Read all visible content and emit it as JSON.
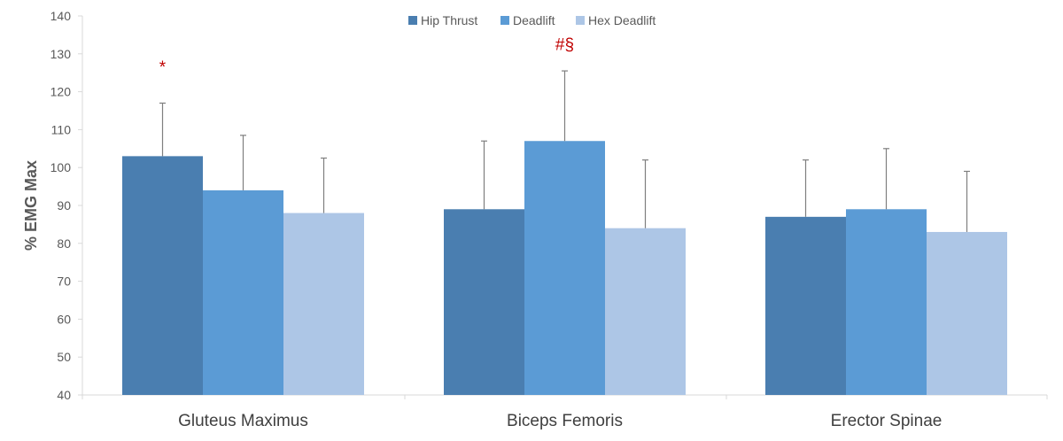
{
  "chart_data": {
    "type": "bar",
    "categories": [
      "Gluteus Maximus",
      "Biceps Femoris",
      "Erector Spinae"
    ],
    "series": [
      {
        "name": "Hip Thrust",
        "color": "#4a7eb0",
        "values": [
          103,
          89,
          87
        ],
        "errors": [
          14,
          18,
          15
        ]
      },
      {
        "name": "Deadlift",
        "color": "#5b9bd5",
        "values": [
          94,
          107,
          89
        ],
        "errors": [
          14.5,
          18.5,
          16
        ]
      },
      {
        "name": "Hex Deadlift",
        "color": "#adc6e6",
        "values": [
          88,
          84,
          83
        ],
        "errors": [
          14.5,
          18,
          16
        ]
      }
    ],
    "ylabel": "% EMG Max",
    "xlabel": "",
    "ylim": [
      40,
      140
    ],
    "yticks": [
      40,
      50,
      60,
      70,
      80,
      90,
      100,
      110,
      120,
      130,
      140
    ],
    "grid": false,
    "legend_position": "top-center",
    "annotations": [
      {
        "text": "*",
        "category": 0,
        "series": 0,
        "y": 125,
        "color": "#c00000"
      },
      {
        "text": "#§",
        "category": 1,
        "series": 1,
        "y": 131,
        "color": "#c00000"
      }
    ]
  }
}
